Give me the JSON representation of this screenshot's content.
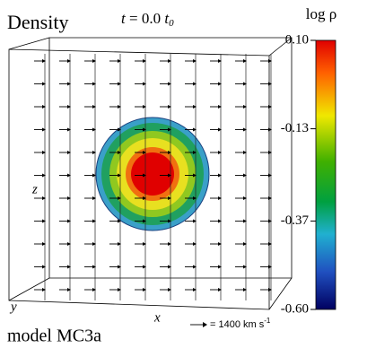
{
  "title": "Density",
  "time": {
    "variable": "t",
    "value": "= 0.0",
    "unit": "t",
    "unit_subscript": "0"
  },
  "colorbar": {
    "label": "log ρ",
    "range": [
      -0.6,
      0.1
    ],
    "ticks": [
      {
        "value": 0.1,
        "label": "0.10"
      },
      {
        "value": -0.13,
        "label": "-0.13"
      },
      {
        "value": -0.37,
        "label": "-0.37"
      },
      {
        "value": -0.6,
        "label": "-0.60"
      }
    ]
  },
  "axes": {
    "x": "x",
    "y": "y",
    "z": "z"
  },
  "velocity_legend": {
    "text": "= 1400 km s",
    "superscript": "-1"
  },
  "model": "model MC3a"
}
